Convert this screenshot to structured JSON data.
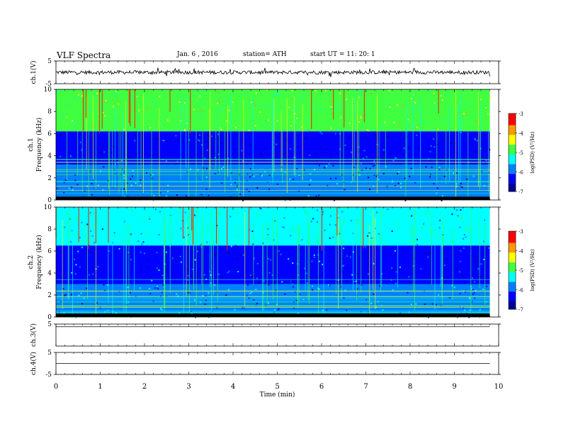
{
  "header": {
    "title": "VLF  Spectra",
    "date": "Jan. 6  , 2016",
    "station": "station= ATH",
    "start": "start  UT  =    11: 20: 1"
  },
  "colorbar": {
    "label": "log(PSD) (V²/Hz)",
    "ticks": [
      "-3",
      "-4",
      "-5",
      "-6",
      "-7"
    ],
    "colors": [
      "#00008f",
      "#0000ff",
      "#0080ff",
      "#00ffff",
      "#40ff40",
      "#ffff00",
      "#ff9900",
      "#ff0000",
      "#ffffff"
    ]
  },
  "chart_data": [
    {
      "type": "line",
      "name": "ch1-waveform",
      "ylabel": "ch.1(V)",
      "ylim": [
        -5,
        5
      ],
      "yticks": [
        "5",
        "-5"
      ],
      "xlim": [
        0,
        10
      ],
      "description_of_trace": "noisy waveform around 0 V with spikes up to about ±2 V",
      "baseline": 0
    },
    {
      "type": "heatmap",
      "name": "ch1-spectrogram",
      "ylabel": "ch.1\nFrequency  (kHz)",
      "ylim": [
        0,
        10
      ],
      "yticks": [
        "10",
        "8",
        "6",
        "4",
        "2",
        "0"
      ],
      "xlim": [
        0,
        9.8
      ],
      "bands": [
        {
          "from_khz": 6.2,
          "to_khz": 10,
          "log_psd": -4.6
        },
        {
          "from_khz": 3.2,
          "to_khz": 6.2,
          "log_psd": -6.4
        },
        {
          "from_khz": 0,
          "to_khz": 3.2,
          "log_psd": -6.0
        }
      ]
    },
    {
      "type": "heatmap",
      "name": "ch2-spectrogram",
      "ylabel": "ch.2\nFrequency  (kHz)",
      "ylim": [
        0,
        10
      ],
      "yticks": [
        "10",
        "8",
        "6",
        "4",
        "2",
        "0"
      ],
      "xlim": [
        0,
        9.8
      ],
      "bands": [
        {
          "from_khz": 6.5,
          "to_khz": 10,
          "log_psd": -5.3
        },
        {
          "from_khz": 3.0,
          "to_khz": 6.5,
          "log_psd": -6.1
        },
        {
          "from_khz": 0,
          "to_khz": 3.0,
          "log_psd": -5.8
        }
      ]
    },
    {
      "type": "line",
      "name": "ch3-waveform",
      "ylabel": "ch.3(V)",
      "ylim": [
        -5,
        5
      ],
      "yticks": [
        "5"
      ],
      "xlim": [
        0,
        9.8
      ],
      "baseline": 3.8
    },
    {
      "type": "line",
      "name": "ch4-waveform",
      "ylabel": "ch.4(V)",
      "ylim": [
        -5,
        5
      ],
      "yticks": [
        "5",
        "-5"
      ],
      "xlim": [
        0,
        9.8
      ],
      "baseline": 0
    }
  ],
  "xaxis": {
    "label": "Time  (min)",
    "ticks": [
      "0",
      "1",
      "2",
      "3",
      "4",
      "5",
      "6",
      "7",
      "8",
      "9",
      "10"
    ],
    "range": [
      0,
      10
    ]
  }
}
